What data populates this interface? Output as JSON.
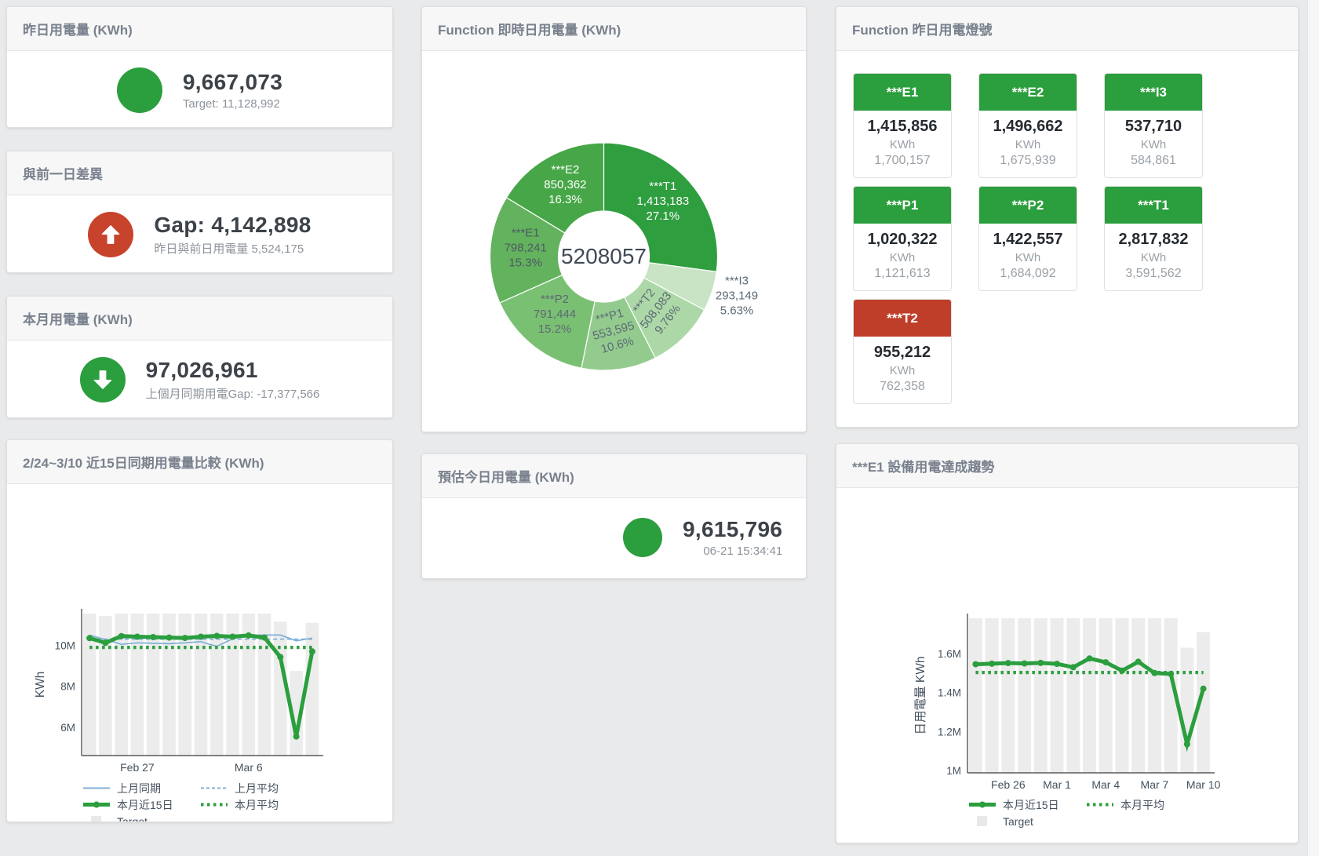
{
  "theme": {
    "green": "#2b9e3e",
    "red": "#bf3e29",
    "blue": "#7fafd6",
    "target_gray": "#ececec",
    "axis_text": "#45525e",
    "value_dark": "#3c4248",
    "donut_center_text": "#3f4a55"
  },
  "cards": {
    "yesterday": {
      "title": "昨日用電量 (KWh)",
      "value": "9,667,073",
      "subtext": "Target: 11,128,992"
    },
    "gap": {
      "title": "與前一日差異",
      "value": "Gap: 4,142,898",
      "subtext": "昨日與前日用電量 5,524,175"
    },
    "month": {
      "title": "本月用電量 (KWh)",
      "value": "97,026,961",
      "subtext": "上個月同期用電Gap: -17,377,566"
    },
    "estimate": {
      "title": "預估今日用電量 (KWh)",
      "value": "9,615,796",
      "subtext": "06-21 15:34:41"
    },
    "comparison_title": "2/24~3/10 近15日同期用電量比較 (KWh)",
    "donut_title": "Function 即時日用電量 (KWh)",
    "lights_title": "Function 昨日用電燈號",
    "trend_title": "***E1 設備用電達成趨勢"
  },
  "tiles": [
    {
      "label": "***E1",
      "value": "1,415,856",
      "unit": "KWh",
      "sub": "1,700,157",
      "status": "green"
    },
    {
      "label": "***E2",
      "value": "1,496,662",
      "unit": "KWh",
      "sub": "1,675,939",
      "status": "green"
    },
    {
      "label": "***I3",
      "value": "537,710",
      "unit": "KWh",
      "sub": "584,861",
      "status": "green"
    },
    {
      "label": "***P1",
      "value": "1,020,322",
      "unit": "KWh",
      "sub": "1,121,613",
      "status": "green"
    },
    {
      "label": "***P2",
      "value": "1,422,557",
      "unit": "KWh",
      "sub": "1,684,092",
      "status": "green"
    },
    {
      "label": "***T1",
      "value": "2,817,832",
      "unit": "KWh",
      "sub": "3,591,562",
      "status": "green"
    },
    {
      "label": "***T2",
      "value": "955,212",
      "unit": "KWh",
      "sub": "762,358",
      "status": "red"
    }
  ],
  "chart_data": [
    {
      "type": "pie",
      "title": "Function 即時日用電量 (KWh)",
      "center_label": "5208057",
      "unit": "KWh",
      "slices": [
        {
          "name": "***T1",
          "value": 1413183,
          "value_label": "1,413,183",
          "pct_label": "27.1%",
          "color": "#2f9e3f",
          "text": "#ffffff",
          "rotate": 0
        },
        {
          "name": "***I3",
          "value": 293149,
          "value_label": "293,149",
          "pct_label": "5.63%",
          "color": "#c8e4c4",
          "text": "#5d6974",
          "rotate": 0,
          "outside": true
        },
        {
          "name": "***T2",
          "value": 508083,
          "value_label": "508,083",
          "pct_label": "9.76%",
          "color": "#acd8a7",
          "text": "#5d6974",
          "rotate": -52
        },
        {
          "name": "***P1",
          "value": 553595,
          "value_label": "553,595",
          "pct_label": "10.6%",
          "color": "#93cb8e",
          "text": "#5d6974",
          "rotate": -15
        },
        {
          "name": "***P2",
          "value": 791444,
          "value_label": "791,444",
          "pct_label": "15.2%",
          "color": "#7ac073",
          "text": "#5d6974",
          "rotate": 0
        },
        {
          "name": "***E1",
          "value": 798241,
          "value_label": "798,241",
          "pct_label": "15.3%",
          "color": "#63b25d",
          "text": "#4e5a64",
          "rotate": 0
        },
        {
          "name": "***E2",
          "value": 850362,
          "value_label": "850,362",
          "pct_label": "16.3%",
          "color": "#47a647",
          "text": "#ffffff",
          "rotate": 0
        }
      ]
    },
    {
      "type": "line",
      "title": "2/24~3/10 近15日同期用電量比較 (KWh)",
      "ylabel": "KWh",
      "unit": "M KWh (values in millions)",
      "ylim": [
        4.62,
        11.55
      ],
      "yticks": [
        {
          "v": 6,
          "label": "6M"
        },
        {
          "v": 8,
          "label": "8M"
        },
        {
          "v": 10,
          "label": "10M"
        }
      ],
      "xticks": [
        {
          "i": 3,
          "label": "Feb 27"
        },
        {
          "i": 10,
          "label": "Mar 6"
        }
      ],
      "x_range_days": "Feb 24 - Mar 10 (15 days)",
      "target_name": "Target",
      "target_bars": [
        11.55,
        11.43,
        11.55,
        11.55,
        11.55,
        11.55,
        11.55,
        11.55,
        11.55,
        11.55,
        11.55,
        11.55,
        11.15,
        8.75,
        11.1
      ],
      "series": [
        {
          "name": "上月同期",
          "color": "blue",
          "dash": "solid",
          "width": 1.7,
          "values": [
            10.5,
            10.28,
            10.05,
            10.12,
            10.1,
            10.08,
            10.12,
            10.18,
            9.95,
            10.32,
            10.48,
            10.5,
            10.5,
            10.22,
            10.35
          ]
        },
        {
          "name": "上月平均",
          "color": "blue",
          "dash": "dash",
          "width": 1.7,
          "const": 10.3
        },
        {
          "name": "本月近15日",
          "color": "green",
          "dash": "solid",
          "width": 5,
          "markers": true,
          "values": [
            10.35,
            10.12,
            10.45,
            10.42,
            10.4,
            10.38,
            10.36,
            10.42,
            10.46,
            10.42,
            10.48,
            10.38,
            9.43,
            5.55,
            9.7
          ]
        },
        {
          "name": "本月平均",
          "color": "green",
          "dash": "dot",
          "width": 4.2,
          "const": 9.9
        }
      ],
      "legend_rows": [
        [
          {
            "swatch": "blue-solid",
            "label": "上月同期"
          },
          {
            "swatch": "blue-dash",
            "label": "上月平均"
          }
        ],
        [
          {
            "swatch": "green-thick",
            "label": "本月近15日"
          },
          {
            "swatch": "green-dot",
            "label": "本月平均"
          }
        ],
        [
          {
            "swatch": "gray-square",
            "label": "Target"
          }
        ]
      ]
    },
    {
      "type": "line",
      "title": "***E1 設備用電達成趨勢",
      "ylabel": "日用電量 KWh",
      "unit": "M KWh (values in millions)",
      "ylim": [
        0.988,
        1.781
      ],
      "yticks": [
        {
          "v": 1,
          "label": "1M"
        },
        {
          "v": 1.2,
          "label": "1.2M"
        },
        {
          "v": 1.4,
          "label": "1.4M"
        },
        {
          "v": 1.6,
          "label": "1.6M"
        }
      ],
      "xticks": [
        {
          "i": 2,
          "label": "Feb 26"
        },
        {
          "i": 5,
          "label": "Mar 1"
        },
        {
          "i": 8,
          "label": "Mar 4"
        },
        {
          "i": 11,
          "label": "Mar 7"
        },
        {
          "i": 14,
          "label": "Mar 10"
        }
      ],
      "x_range_days": "Feb 24 - Mar 10 (15 days)",
      "target_name": "Target",
      "target_bars": [
        1.781,
        1.781,
        1.781,
        1.781,
        1.781,
        1.781,
        1.781,
        1.781,
        1.781,
        1.781,
        1.781,
        1.781,
        1.781,
        1.63,
        1.71
      ],
      "series": [
        {
          "name": "本月近15日",
          "color": "green",
          "dash": "solid",
          "width": 5,
          "markers": true,
          "values": [
            1.545,
            1.548,
            1.551,
            1.549,
            1.552,
            1.547,
            1.53,
            1.575,
            1.555,
            1.512,
            1.558,
            1.5,
            1.495,
            1.135,
            1.42
          ]
        },
        {
          "name": "本月平均",
          "color": "green",
          "dash": "dot",
          "width": 4.2,
          "const": 1.503
        }
      ],
      "legend_rows": [
        [
          {
            "swatch": "green-thick",
            "label": "本月近15日"
          },
          {
            "swatch": "green-dot",
            "label": "本月平均"
          }
        ],
        [
          {
            "swatch": "gray-square",
            "label": "Target"
          }
        ]
      ]
    }
  ]
}
